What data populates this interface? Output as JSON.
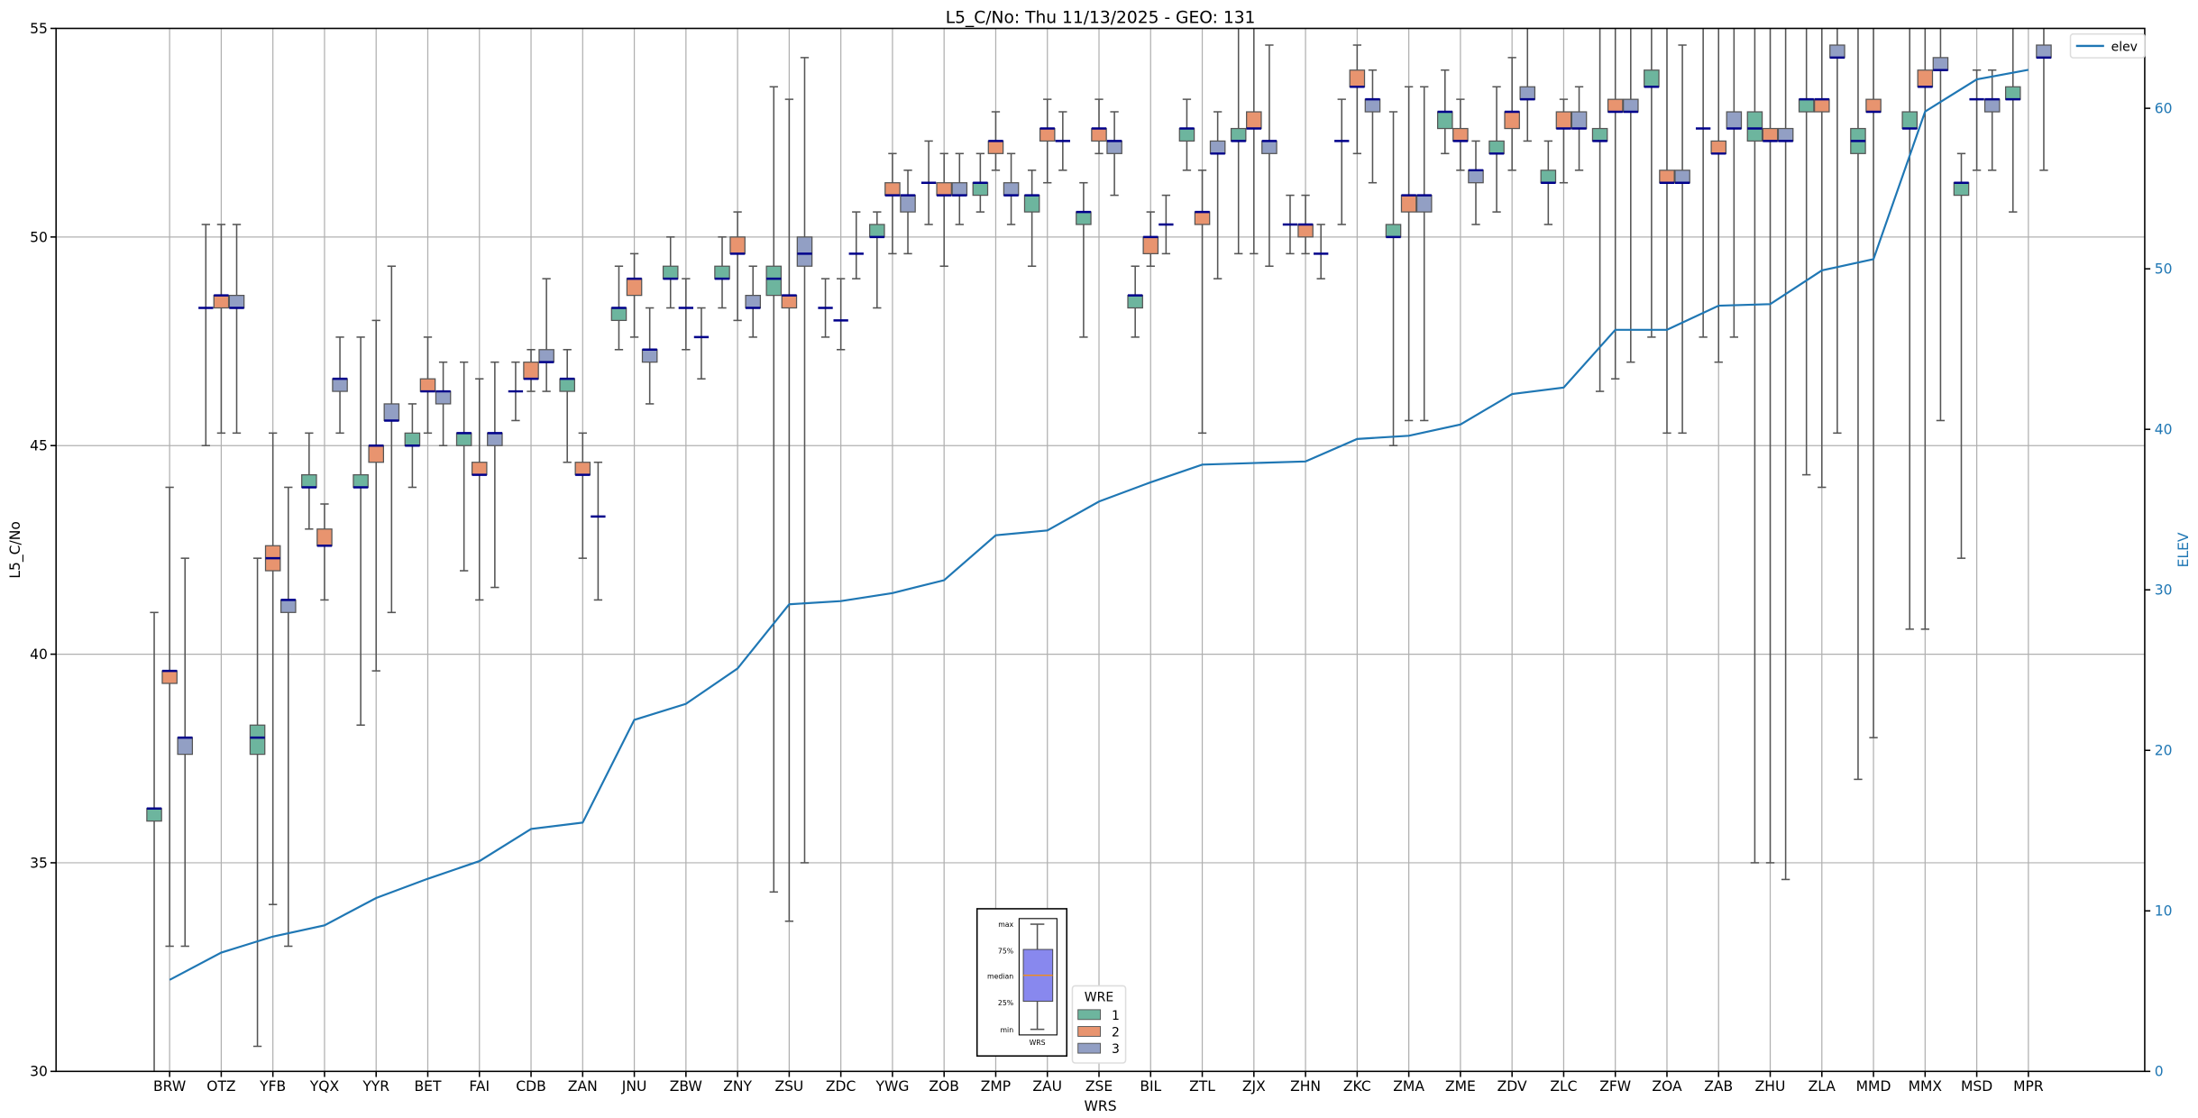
{
  "chart_data": {
    "type": "box",
    "title": "L5_C/No: Thu 11/13/2025 - GEO: 131",
    "xlabel": "WRS",
    "ylabel": "L5_C/No",
    "ylabel_right": "ELEV",
    "ylim": [
      30,
      55
    ],
    "ylim_right": [
      0,
      65
    ],
    "yticks": [
      "30",
      "35",
      "40",
      "45",
      "50",
      "55"
    ],
    "yticks_right": [
      "0",
      "10",
      "20",
      "30",
      "40",
      "50",
      "60"
    ],
    "grid": true,
    "categories": [
      "BRW",
      "OTZ",
      "YFB",
      "YQX",
      "YYR",
      "BET",
      "FAI",
      "CDB",
      "ZAN",
      "JNU",
      "ZBW",
      "ZNY",
      "ZSU",
      "ZDC",
      "YWG",
      "ZOB",
      "ZMP",
      "ZAU",
      "ZSE",
      "BIL",
      "ZTL",
      "ZJX",
      "ZHN",
      "ZKC",
      "ZMA",
      "ZME",
      "ZDV",
      "ZLC",
      "ZFW",
      "ZOA",
      "ZAB",
      "ZHU",
      "ZLA",
      "MMD",
      "MMX",
      "MSD",
      "MPR"
    ],
    "box_fields": [
      "min",
      "q1",
      "median",
      "q3",
      "max"
    ],
    "series": [
      {
        "name": "1",
        "color": "#6db59e",
        "boxes": [
          [
            30,
            36.0,
            36.3,
            36.3,
            41.0
          ],
          [
            45.0,
            48.3,
            48.3,
            48.3,
            50.3
          ],
          [
            30.6,
            37.6,
            38.0,
            38.3,
            42.3
          ],
          [
            43.0,
            44.0,
            44.0,
            44.3,
            45.3
          ],
          [
            38.3,
            44.0,
            44.0,
            44.3,
            47.6
          ],
          [
            44.0,
            45.0,
            45.0,
            45.3,
            46.0
          ],
          [
            42.0,
            45.0,
            45.3,
            45.3,
            47.0
          ],
          [
            45.6,
            46.3,
            46.3,
            46.3,
            47.0
          ],
          [
            44.6,
            46.3,
            46.6,
            46.6,
            47.3
          ],
          [
            47.3,
            48.0,
            48.3,
            48.3,
            49.3
          ],
          [
            48.3,
            49.0,
            49.0,
            49.3,
            50.0
          ],
          [
            48.3,
            49.0,
            49.0,
            49.3,
            50.0
          ],
          [
            34.3,
            48.6,
            49.0,
            49.3,
            53.6
          ],
          [
            47.6,
            48.3,
            48.3,
            48.3,
            49.0
          ],
          [
            48.3,
            50.0,
            50.0,
            50.3,
            50.6
          ],
          [
            50.3,
            51.3,
            51.3,
            51.3,
            52.3
          ],
          [
            50.6,
            51.0,
            51.3,
            51.3,
            52.0
          ],
          [
            49.3,
            50.6,
            51.0,
            51.0,
            51.6
          ],
          [
            47.6,
            50.3,
            50.6,
            50.6,
            51.3
          ],
          [
            47.6,
            48.3,
            48.6,
            48.6,
            49.3
          ],
          [
            51.6,
            52.3,
            52.6,
            52.6,
            53.3
          ],
          [
            49.6,
            52.3,
            52.3,
            52.6,
            56
          ],
          [
            49.6,
            50.3,
            50.3,
            50.3,
            51.0
          ],
          [
            50.3,
            52.3,
            52.3,
            52.3,
            53.3
          ],
          [
            45.0,
            50.0,
            50.0,
            50.3,
            53.0
          ],
          [
            52.0,
            52.6,
            53.0,
            53.0,
            54.0
          ],
          [
            50.6,
            52.0,
            52.0,
            52.3,
            53.6
          ],
          [
            50.3,
            51.3,
            51.3,
            51.6,
            52.3
          ],
          [
            46.3,
            52.3,
            52.3,
            52.6,
            56
          ],
          [
            47.6,
            53.6,
            53.6,
            54.0,
            56
          ],
          [
            47.6,
            52.6,
            52.6,
            52.6,
            56
          ],
          [
            35.0,
            52.3,
            52.6,
            53.0,
            56
          ],
          [
            44.3,
            53.0,
            53.3,
            53.3,
            56
          ],
          [
            37.0,
            52.0,
            52.3,
            52.6,
            56
          ],
          [
            40.6,
            52.6,
            52.6,
            53.0,
            56
          ],
          [
            42.3,
            51.0,
            51.3,
            51.3,
            52.0
          ],
          [
            50.6,
            53.3,
            53.3,
            53.6,
            56
          ]
        ]
      },
      {
        "name": "2",
        "color": "#e8946f",
        "boxes": [
          [
            33.0,
            39.3,
            39.6,
            39.6,
            44.0
          ],
          [
            45.3,
            48.3,
            48.6,
            48.6,
            50.3
          ],
          [
            34.0,
            42.0,
            42.3,
            42.6,
            45.3
          ],
          [
            41.3,
            42.6,
            42.6,
            43.0,
            43.6
          ],
          [
            39.6,
            44.6,
            45.0,
            45.0,
            48.0
          ],
          [
            45.3,
            46.3,
            46.3,
            46.6,
            47.6
          ],
          [
            41.3,
            44.3,
            44.3,
            44.6,
            46.6
          ],
          [
            46.3,
            46.6,
            46.6,
            47.0,
            47.3
          ],
          [
            42.3,
            44.3,
            44.3,
            44.6,
            45.3
          ],
          [
            47.6,
            48.6,
            49.0,
            49.0,
            49.6
          ],
          [
            47.3,
            48.3,
            48.3,
            48.3,
            49.0
          ],
          [
            48.0,
            49.6,
            49.6,
            50.0,
            50.6
          ],
          [
            33.6,
            48.3,
            48.6,
            48.6,
            53.3
          ],
          [
            47.3,
            48.0,
            48.0,
            48.0,
            49.0
          ],
          [
            49.6,
            51.0,
            51.0,
            51.3,
            52.0
          ],
          [
            49.3,
            51.0,
            51.0,
            51.3,
            52.0
          ],
          [
            51.6,
            52.0,
            52.3,
            52.3,
            53.0
          ],
          [
            51.3,
            52.3,
            52.6,
            52.6,
            53.3
          ],
          [
            52.0,
            52.3,
            52.6,
            52.6,
            53.3
          ],
          [
            49.3,
            49.6,
            50.0,
            50.0,
            50.6
          ],
          [
            45.3,
            50.3,
            50.6,
            50.6,
            51.6
          ],
          [
            49.6,
            52.6,
            52.6,
            53.0,
            56
          ],
          [
            49.6,
            50.0,
            50.3,
            50.3,
            51.0
          ],
          [
            52.0,
            53.6,
            53.6,
            54.0,
            54.6
          ],
          [
            45.6,
            50.6,
            51.0,
            51.0,
            53.6
          ],
          [
            51.6,
            52.3,
            52.3,
            52.6,
            53.3
          ],
          [
            51.6,
            52.6,
            53.0,
            53.0,
            54.3
          ],
          [
            51.3,
            52.6,
            52.6,
            53.0,
            53.3
          ],
          [
            46.6,
            53.0,
            53.0,
            53.3,
            56
          ],
          [
            45.3,
            51.3,
            51.3,
            51.6,
            56
          ],
          [
            47.0,
            52.0,
            52.0,
            52.3,
            56
          ],
          [
            35.0,
            52.3,
            52.3,
            52.6,
            56
          ],
          [
            44.0,
            53.0,
            53.3,
            53.3,
            56
          ],
          [
            38.0,
            53.0,
            53.0,
            53.3,
            56
          ],
          [
            40.6,
            53.6,
            53.6,
            54.0,
            56
          ],
          [
            51.6,
            53.3,
            53.3,
            53.3,
            54.0
          ],
          null
        ]
      },
      {
        "name": "3",
        "color": "#929fc4",
        "boxes": [
          [
            33.0,
            37.6,
            38.0,
            38.0,
            42.3
          ],
          [
            45.3,
            48.3,
            48.3,
            48.6,
            50.3
          ],
          [
            33.0,
            41.0,
            41.3,
            41.3,
            44.0
          ],
          [
            45.3,
            46.3,
            46.6,
            46.6,
            47.6
          ],
          [
            41.0,
            45.6,
            45.6,
            46.0,
            49.3
          ],
          [
            45.0,
            46.0,
            46.3,
            46.3,
            47.0
          ],
          [
            41.6,
            45.0,
            45.3,
            45.3,
            47.0
          ],
          [
            46.3,
            47.0,
            47.0,
            47.3,
            49.0
          ],
          [
            41.3,
            43.3,
            43.3,
            43.3,
            44.6
          ],
          [
            46.0,
            47.0,
            47.3,
            47.3,
            48.3
          ],
          [
            46.6,
            47.6,
            47.6,
            47.6,
            48.3
          ],
          [
            47.6,
            48.3,
            48.3,
            48.6,
            49.3
          ],
          [
            35.0,
            49.3,
            49.6,
            50.0,
            54.3
          ],
          [
            49.0,
            49.6,
            49.6,
            49.6,
            50.6
          ],
          [
            49.6,
            50.6,
            51.0,
            51.0,
            51.6
          ],
          [
            50.3,
            51.0,
            51.0,
            51.3,
            52.0
          ],
          [
            50.3,
            51.0,
            51.0,
            51.3,
            52.0
          ],
          [
            51.6,
            52.3,
            52.3,
            52.3,
            53.0
          ],
          [
            51.0,
            52.0,
            52.3,
            52.3,
            53.0
          ],
          [
            49.6,
            50.3,
            50.3,
            50.3,
            51.0
          ],
          [
            49.0,
            52.0,
            52.0,
            52.3,
            53.0
          ],
          [
            49.3,
            52.0,
            52.3,
            52.3,
            54.6
          ],
          [
            49.0,
            49.6,
            49.6,
            49.6,
            50.3
          ],
          [
            51.3,
            53.0,
            53.3,
            53.3,
            54.0
          ],
          [
            45.6,
            50.6,
            51.0,
            51.0,
            53.6
          ],
          [
            50.3,
            51.3,
            51.6,
            51.6,
            52.3
          ],
          [
            52.3,
            53.3,
            53.3,
            53.6,
            56
          ],
          [
            51.6,
            52.6,
            52.6,
            53.0,
            53.6
          ],
          [
            47.0,
            53.0,
            53.0,
            53.3,
            56
          ],
          [
            45.3,
            51.3,
            51.3,
            51.6,
            54.6
          ],
          [
            47.6,
            52.6,
            52.6,
            53.0,
            56
          ],
          [
            34.6,
            52.3,
            52.3,
            52.6,
            56
          ],
          [
            45.3,
            54.3,
            54.3,
            54.6,
            56
          ],
          null,
          [
            45.6,
            54.0,
            54.0,
            54.3,
            56
          ],
          [
            51.6,
            53.0,
            53.3,
            53.3,
            54.0
          ],
          [
            51.6,
            54.3,
            54.3,
            54.6,
            56
          ]
        ]
      }
    ],
    "line": {
      "name": "elev",
      "color": "#1f77b4",
      "values": [
        5.7,
        7.4,
        8.4,
        9.1,
        10.8,
        12.0,
        13.1,
        15.1,
        15.5,
        21.9,
        22.9,
        25.1,
        29.1,
        29.3,
        29.8,
        30.6,
        33.4,
        33.7,
        35.5,
        36.7,
        37.8,
        37.9,
        38.0,
        39.4,
        39.6,
        40.3,
        42.2,
        42.6,
        46.2,
        46.2,
        47.7,
        47.8,
        49.9,
        50.6,
        59.8,
        61.8,
        62.4
      ]
    },
    "legend": {
      "title": "WRE",
      "placement": "bottom-center",
      "line_placement": "top-right"
    },
    "box_key": {
      "labels": [
        "max",
        "75%",
        "median",
        "25%",
        "min"
      ],
      "xlabel": "WRS",
      "box_color": "#8888ee",
      "median_color": "#ff8c00"
    },
    "median_color": "#00008b"
  }
}
